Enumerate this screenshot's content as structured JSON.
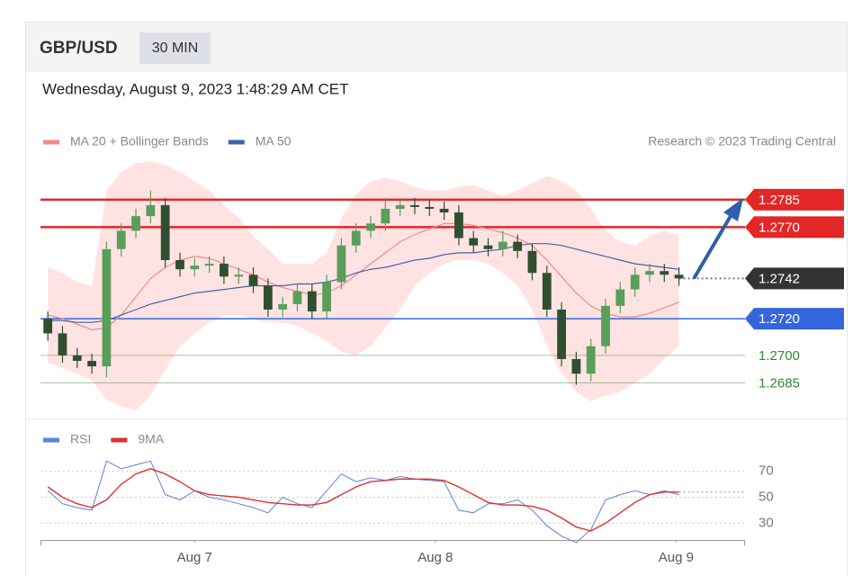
{
  "header": {
    "symbol": "GBP/USD",
    "timeframe": "30 MIN",
    "datetime": "Wednesday, August 9, 2023 1:48:29 AM CET",
    "credit": "Research © 2023 Trading Central"
  },
  "chart_data": [
    {
      "type": "candlestick",
      "xlim": [
        -0.5,
        47.5
      ],
      "xticks": [
        {
          "value": 10,
          "label": "Aug 7"
        },
        {
          "value": 26.4,
          "label": "Aug 8"
        },
        {
          "value": 42.8,
          "label": "Aug 9"
        }
      ],
      "ylim": [
        1.2668,
        1.2808
      ],
      "up_color": "#5a9e5a",
      "down_color": "#2f4f2f",
      "open": [
        1.272,
        1.2712,
        1.27,
        1.2697,
        1.2694,
        1.2758,
        1.2768,
        1.2776,
        1.2782,
        1.2752,
        1.2747,
        1.2749,
        1.275,
        1.2743,
        1.2744,
        1.2738,
        1.2725,
        1.2728,
        1.2735,
        1.2724,
        1.274,
        1.276,
        1.2768,
        1.2772,
        1.278,
        1.2782,
        1.2781,
        1.278,
        1.2778,
        1.2764,
        1.276,
        1.2758,
        1.2762,
        1.2757,
        1.2745,
        1.2725,
        1.2698,
        1.269,
        1.2705,
        1.2727,
        1.2736,
        1.2744,
        1.2746,
        1.2744
      ],
      "high": [
        1.2724,
        1.2716,
        1.2704,
        1.2701,
        1.2762,
        1.2772,
        1.278,
        1.279,
        1.2786,
        1.2756,
        1.2753,
        1.2754,
        1.2754,
        1.2748,
        1.2748,
        1.2742,
        1.2732,
        1.2739,
        1.2739,
        1.2744,
        1.2764,
        1.2772,
        1.2776,
        1.2786,
        1.2786,
        1.2786,
        1.2785,
        1.2784,
        1.2782,
        1.2768,
        1.2764,
        1.2768,
        1.2766,
        1.2761,
        1.2749,
        1.2729,
        1.2702,
        1.2709,
        1.2731,
        1.274,
        1.2748,
        1.275,
        1.275,
        1.2748
      ],
      "low": [
        1.2708,
        1.2696,
        1.2693,
        1.269,
        1.2688,
        1.2754,
        1.2764,
        1.2772,
        1.2748,
        1.2743,
        1.2743,
        1.2745,
        1.2739,
        1.2739,
        1.2734,
        1.2721,
        1.2721,
        1.2724,
        1.272,
        1.272,
        1.2736,
        1.2756,
        1.2764,
        1.2768,
        1.2776,
        1.2777,
        1.2776,
        1.2774,
        1.276,
        1.2756,
        1.2754,
        1.2754,
        1.2753,
        1.2741,
        1.2721,
        1.2694,
        1.2684,
        1.2686,
        1.2701,
        1.2723,
        1.2732,
        1.274,
        1.274,
        1.2738
      ],
      "close": [
        1.2712,
        1.27,
        1.2697,
        1.2694,
        1.2758,
        1.2768,
        1.2776,
        1.2782,
        1.2752,
        1.2747,
        1.2749,
        1.275,
        1.2743,
        1.2744,
        1.2738,
        1.2725,
        1.2728,
        1.2735,
        1.2724,
        1.274,
        1.276,
        1.2768,
        1.2772,
        1.278,
        1.2782,
        1.2781,
        1.278,
        1.2778,
        1.2764,
        1.276,
        1.2758,
        1.2762,
        1.2757,
        1.2745,
        1.2725,
        1.2698,
        1.269,
        1.2705,
        1.2727,
        1.2736,
        1.2744,
        1.2746,
        1.2744,
        1.2742
      ],
      "series": [
        {
          "name": "MA 20 + Bollinger Bands",
          "color": "#f08a8a",
          "band_color": "#ffdede",
          "values": [
            1.2722,
            1.272,
            1.2717,
            1.2714,
            1.2715,
            1.2722,
            1.2732,
            1.2742,
            1.2748,
            1.2752,
            1.2754,
            1.2753,
            1.275,
            1.2747,
            1.2744,
            1.274,
            1.2737,
            1.2735,
            1.2733,
            1.2734,
            1.2738,
            1.2744,
            1.275,
            1.2756,
            1.2762,
            1.2766,
            1.2769,
            1.2772,
            1.2772,
            1.2771,
            1.2769,
            1.2767,
            1.2764,
            1.276,
            1.2752,
            1.2743,
            1.2734,
            1.2727,
            1.2723,
            1.2721,
            1.2721,
            1.2723,
            1.2726,
            1.2729
          ],
          "upper": [
            1.2748,
            1.2745,
            1.274,
            1.2738,
            1.279,
            1.28,
            1.2805,
            1.2806,
            1.2804,
            1.28,
            1.2795,
            1.279,
            1.2782,
            1.2775,
            1.2765,
            1.2758,
            1.275,
            1.275,
            1.275,
            1.2756,
            1.2775,
            1.2788,
            1.2795,
            1.2797,
            1.2795,
            1.2792,
            1.279,
            1.279,
            1.2792,
            1.2793,
            1.279,
            1.2787,
            1.279,
            1.2794,
            1.2798,
            1.2795,
            1.279,
            1.278,
            1.2768,
            1.2762,
            1.276,
            1.2765,
            1.2768,
            1.2765
          ],
          "lower": [
            1.2696,
            1.2693,
            1.269,
            1.2686,
            1.2676,
            1.2672,
            1.267,
            1.2678,
            1.2692,
            1.2705,
            1.2712,
            1.2718,
            1.2722,
            1.2722,
            1.272,
            1.2718,
            1.2718,
            1.2716,
            1.2712,
            1.2708,
            1.2702,
            1.27,
            1.2705,
            1.2715,
            1.2725,
            1.2738,
            1.2745,
            1.275,
            1.2752,
            1.2752,
            1.275,
            1.2745,
            1.2738,
            1.2725,
            1.2705,
            1.269,
            1.268,
            1.2675,
            1.2678,
            1.268,
            1.2685,
            1.269,
            1.2698,
            1.2705
          ]
        },
        {
          "name": "MA 50",
          "color": "#3f63a8",
          "values": [
            1.2719,
            1.2719,
            1.2718,
            1.2718,
            1.2719,
            1.2722,
            1.2725,
            1.2728,
            1.273,
            1.2732,
            1.2734,
            1.2735,
            1.2736,
            1.2737,
            1.2738,
            1.2738,
            1.2738,
            1.2739,
            1.2739,
            1.274,
            1.2742,
            1.2745,
            1.2747,
            1.2748,
            1.275,
            1.2752,
            1.2753,
            1.2755,
            1.2756,
            1.2756,
            1.2757,
            1.2758,
            1.276,
            1.2761,
            1.2761,
            1.276,
            1.2758,
            1.2756,
            1.2754,
            1.2752,
            1.275,
            1.2749,
            1.2748,
            1.2747
          ]
        }
      ],
      "levels": [
        {
          "value": 1.2785,
          "color": "#e32626",
          "style": "box"
        },
        {
          "value": 1.277,
          "label": "1.2770",
          "color": "#e32626",
          "style": "box"
        },
        {
          "value": 1.2742,
          "color": "#333333",
          "style": "current"
        },
        {
          "value": 1.272,
          "label": "1.2720",
          "color": "#3366dd",
          "style": "box"
        },
        {
          "value": 1.27,
          "label": "1.2700",
          "color": "#2e8b2e",
          "style": "text"
        },
        {
          "value": 1.2685,
          "color": "#2e8b2e",
          "style": "text"
        }
      ]
    },
    {
      "type": "line",
      "xlim": [
        -0.5,
        47.5
      ],
      "ylim": [
        17,
        83
      ],
      "yticks": [
        70,
        50,
        30
      ],
      "grid": true,
      "series": [
        {
          "name": "RSI",
          "color": "#5b80e0",
          "values": [
            55,
            45,
            42,
            40,
            78,
            72,
            75,
            78,
            52,
            48,
            55,
            50,
            48,
            45,
            42,
            38,
            50,
            45,
            42,
            55,
            68,
            62,
            65,
            63,
            66,
            64,
            63,
            62,
            40,
            38,
            45,
            45,
            48,
            40,
            28,
            20,
            15,
            25,
            48,
            52,
            55,
            52,
            55,
            52
          ]
        },
        {
          "name": "9MA",
          "color": "#e03030",
          "values": [
            58,
            50,
            45,
            42,
            48,
            60,
            68,
            72,
            68,
            62,
            55,
            52,
            51,
            50,
            48,
            46,
            45,
            44,
            44,
            46,
            52,
            58,
            62,
            63,
            64,
            64,
            64,
            63,
            58,
            52,
            46,
            44,
            44,
            43,
            40,
            34,
            27,
            24,
            30,
            38,
            46,
            52,
            54,
            54
          ]
        }
      ]
    }
  ]
}
